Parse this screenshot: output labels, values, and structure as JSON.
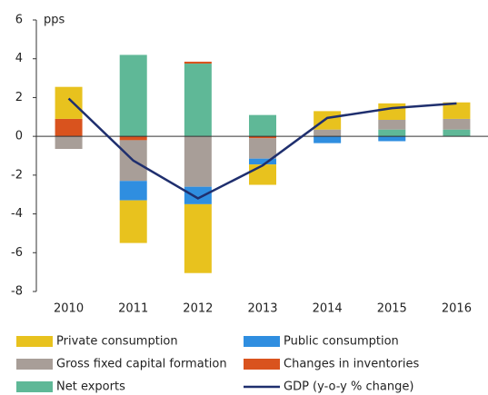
{
  "chart_data": {
    "type": "bar",
    "stacked": true,
    "ylabel": "pps",
    "categories": [
      "2010",
      "2011",
      "2012",
      "2013",
      "2014",
      "2015",
      "2016"
    ],
    "ylim": [
      -8,
      6
    ],
    "yticks": [
      6,
      4,
      2,
      0,
      -2,
      -4,
      -6,
      -8
    ],
    "series": [
      {
        "name": "Private consumption",
        "color": "#e8c21e",
        "values": [
          1.65,
          -2.2,
          -3.55,
          -1.05,
          0.95,
          0.85,
          0.85
        ]
      },
      {
        "name": "Public consumption",
        "color": "#2f8ee0",
        "values": [
          0,
          -1.0,
          -0.9,
          -0.3,
          -0.35,
          -0.25,
          0
        ]
      },
      {
        "name": "Gross fixed capital formation",
        "color": "#a89e98",
        "values": [
          -0.65,
          -2.1,
          -2.6,
          -1.05,
          0.35,
          0.5,
          0.55
        ]
      },
      {
        "name": "Changes in inventories",
        "color": "#d9531e",
        "values": [
          0.9,
          -0.2,
          0.1,
          -0.1,
          0,
          0,
          0
        ]
      },
      {
        "name": "Net exports",
        "color": "#5fb897",
        "values": [
          0,
          4.2,
          3.75,
          1.1,
          0,
          0.35,
          0.35
        ]
      },
      {
        "name": "GDP (y-o-y % change)",
        "color": "#1f2f6e",
        "type": "line",
        "values": [
          1.95,
          -1.25,
          -3.2,
          -1.5,
          0.95,
          1.45,
          1.7
        ]
      }
    ]
  }
}
